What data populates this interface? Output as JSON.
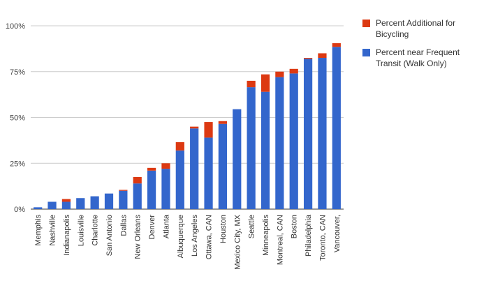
{
  "chart_data": {
    "type": "bar",
    "stacked": true,
    "categories": [
      "Memphis",
      "Nashville",
      "Indianapolis",
      "Louisville",
      "Charlotte",
      "San Antonio",
      "Dallas",
      "New Orleans",
      "Denver",
      "Atlanta",
      "Albuquerque",
      "Los Angeles",
      "Ottawa, CAN",
      "Houston",
      "Mexico City, MX",
      "Seattle",
      "Minneapolis",
      "Montreal, CAN",
      "Boston",
      "Philadelphia",
      "Toronto, CAN",
      "Vancouver,"
    ],
    "series": [
      {
        "name": "Percent near Frequent Transit (Walk Only)",
        "color": "#3366cc",
        "values": [
          1,
          4,
          4,
          6,
          7,
          8.5,
          10,
          14,
          21,
          22,
          32,
          44,
          39,
          46.5,
          54.5,
          66.5,
          64,
          72,
          74,
          82,
          82.5,
          88.5
        ]
      },
      {
        "name": "Percent Additional for Bicycling",
        "color": "#dc3912",
        "values": [
          0,
          0,
          1.5,
          0,
          0,
          0,
          0.5,
          3.5,
          1.5,
          3,
          4.5,
          1,
          8.5,
          1.5,
          0,
          3.5,
          9.5,
          3,
          2.5,
          0.5,
          2.5,
          2
        ]
      }
    ],
    "ylim": [
      0,
      100
    ],
    "yticks": [
      "0%",
      "25%",
      "50%",
      "75%",
      "100%"
    ],
    "ytick_values": [
      0,
      25,
      50,
      75,
      100
    ],
    "grid": true,
    "legend_position": "right"
  }
}
